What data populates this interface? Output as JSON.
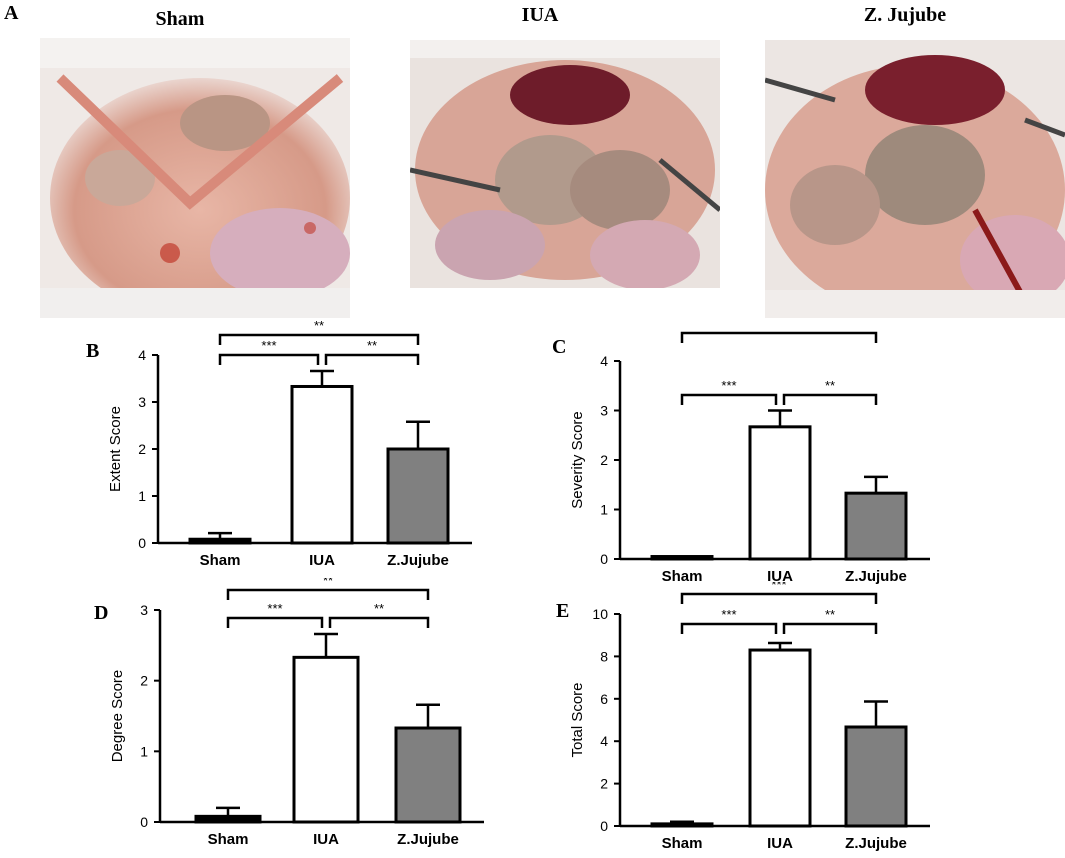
{
  "figure": {
    "panel_a": {
      "letter": "A",
      "photos": [
        {
          "title": "Sham"
        },
        {
          "title": "IUA"
        },
        {
          "title": "Z. Jujube"
        }
      ]
    }
  },
  "colors": {
    "white_bar": "#ffffff",
    "gray_bar": "#808080",
    "axis": "#000000"
  },
  "chart_data": [
    {
      "panel": "B",
      "type": "bar",
      "ylabel": "Extent Score",
      "categories": [
        "Sham",
        "IUA",
        "Z.Jujube"
      ],
      "values": [
        0.08,
        3.33,
        2.0
      ],
      "errors": [
        0.13,
        0.33,
        0.58
      ],
      "ylim": [
        0,
        4
      ],
      "yticks": [
        0,
        1,
        2,
        3,
        4
      ],
      "significance": [
        {
          "from": 0,
          "to": 2,
          "label": "**",
          "level": 2
        },
        {
          "from": 0,
          "to": 1,
          "label": "***",
          "level": 1
        },
        {
          "from": 1,
          "to": 2,
          "label": "**",
          "level": 1
        }
      ]
    },
    {
      "panel": "C",
      "type": "bar",
      "ylabel": "Severity Score",
      "categories": [
        "Sham",
        "IUA",
        "Z.Jujube"
      ],
      "values": [
        0.05,
        2.67,
        1.33
      ],
      "errors": [
        0.0,
        0.33,
        0.33
      ],
      "ylim": [
        0,
        4
      ],
      "yticks": [
        0,
        1,
        2,
        3,
        4
      ],
      "significance": [
        {
          "from": 0,
          "to": 2,
          "label": "**",
          "level": 2
        },
        {
          "from": 0,
          "to": 1,
          "label": "***",
          "level": 1
        },
        {
          "from": 1,
          "to": 2,
          "label": "**",
          "level": 1
        }
      ]
    },
    {
      "panel": "D",
      "type": "bar",
      "ylabel": "Degree Score",
      "categories": [
        "Sham",
        "IUA",
        "Z.Jujube"
      ],
      "values": [
        0.08,
        2.33,
        1.33
      ],
      "errors": [
        0.12,
        0.33,
        0.33
      ],
      "ylim": [
        0,
        3
      ],
      "yticks": [
        0,
        1,
        2,
        3
      ],
      "significance": [
        {
          "from": 0,
          "to": 2,
          "label": "**",
          "level": 2
        },
        {
          "from": 0,
          "to": 1,
          "label": "***",
          "level": 1
        },
        {
          "from": 1,
          "to": 2,
          "label": "**",
          "level": 1
        }
      ]
    },
    {
      "panel": "E",
      "type": "bar",
      "ylabel": "Total Score",
      "categories": [
        "Sham",
        "IUA",
        "Z.Jujube"
      ],
      "values": [
        0.1,
        8.3,
        4.67
      ],
      "errors": [
        0.1,
        0.33,
        1.2
      ],
      "ylim": [
        0,
        10
      ],
      "yticks": [
        0,
        2,
        4,
        6,
        8,
        10
      ],
      "significance": [
        {
          "from": 0,
          "to": 2,
          "label": "***",
          "level": 2
        },
        {
          "from": 0,
          "to": 1,
          "label": "***",
          "level": 1
        },
        {
          "from": 1,
          "to": 2,
          "label": "**",
          "level": 1
        }
      ]
    }
  ]
}
